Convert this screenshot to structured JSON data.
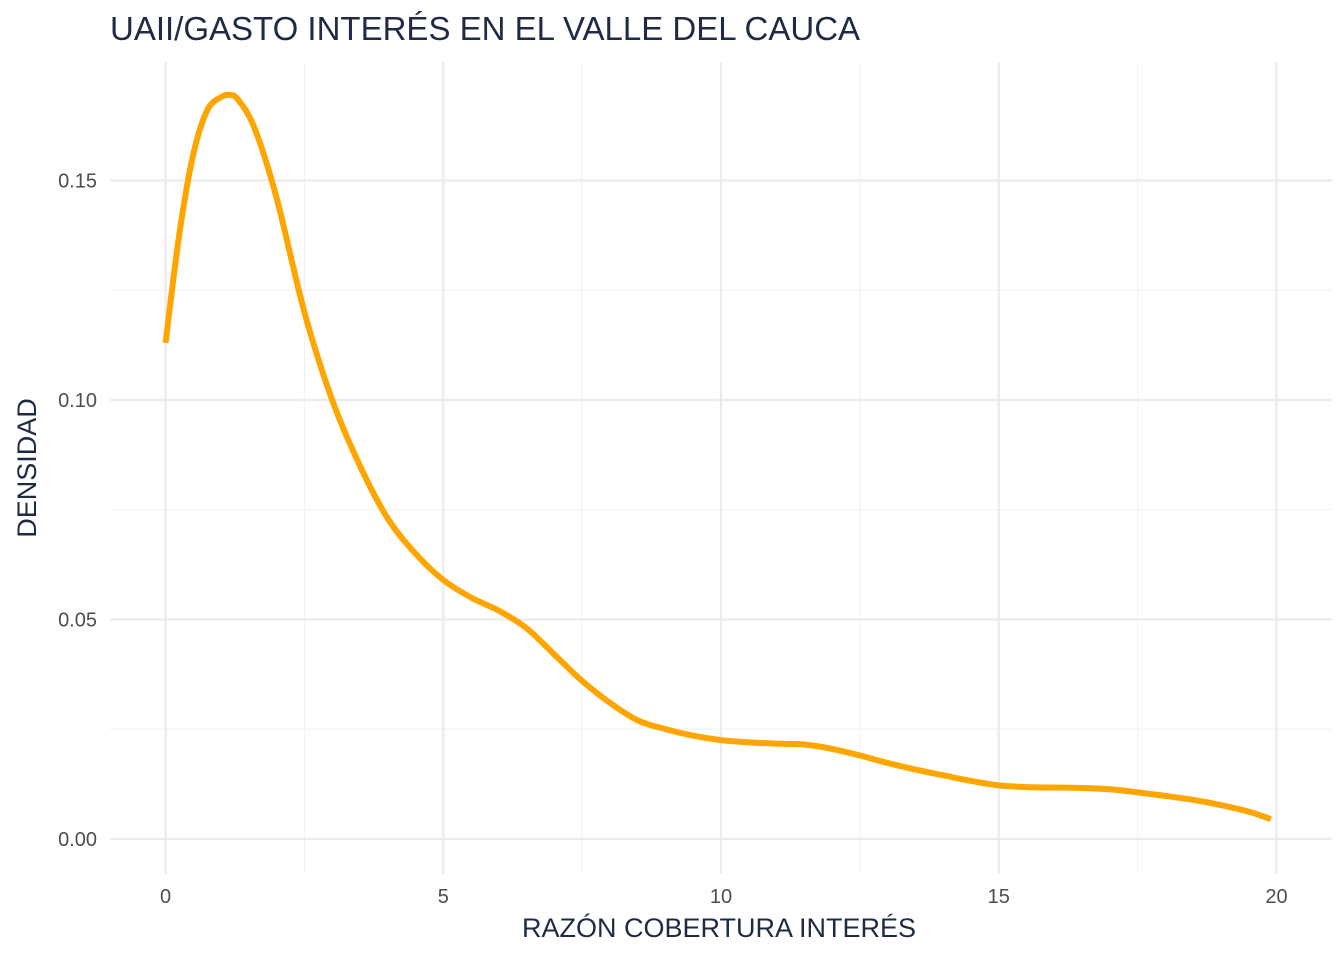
{
  "chart_data": {
    "type": "line",
    "title": "UAII/GASTO INTERÉS EN EL VALLE DEL CAUCA",
    "xlabel": "RAZÓN COBERTURA INTERÉS",
    "ylabel": "DENSIDAD",
    "xlim": [
      -1,
      21
    ],
    "ylim": [
      -0.008,
      0.177
    ],
    "x_ticks": [
      0,
      5,
      10,
      15,
      20
    ],
    "x_tick_labels": [
      "0",
      "5",
      "10",
      "15",
      "20"
    ],
    "y_ticks": [
      0.0,
      0.05,
      0.1,
      0.15
    ],
    "y_tick_labels": [
      "0.00",
      "0.05",
      "0.10",
      "0.15"
    ],
    "x_minor_ticks": [
      2.5,
      7.5,
      12.5,
      17.5
    ],
    "y_minor_ticks": [
      0.025,
      0.075,
      0.125
    ],
    "grid": true,
    "line_color": "#FFA500",
    "series": [
      {
        "x": [
          0,
          0.25,
          0.5,
          0.75,
          1.0,
          1.15,
          1.3,
          1.6,
          2.0,
          2.5,
          3.0,
          3.5,
          4.0,
          4.5,
          5.0,
          5.5,
          6.0,
          6.5,
          7.0,
          7.5,
          8.0,
          8.5,
          9.0,
          9.5,
          10.0,
          10.5,
          11.0,
          11.5,
          12.0,
          12.5,
          13.0,
          13.5,
          14.0,
          14.5,
          15.0,
          15.5,
          16.0,
          16.5,
          17.0,
          17.5,
          18.0,
          18.5,
          19.0,
          19.5,
          19.9
        ],
        "y": [
          0.113,
          0.138,
          0.156,
          0.166,
          0.169,
          0.1695,
          0.1685,
          0.162,
          0.146,
          0.12,
          0.1,
          0.085,
          0.073,
          0.065,
          0.059,
          0.055,
          0.052,
          0.048,
          0.042,
          0.036,
          0.031,
          0.027,
          0.025,
          0.0235,
          0.0225,
          0.022,
          0.0217,
          0.0215,
          0.0205,
          0.019,
          0.0173,
          0.0158,
          0.0145,
          0.0132,
          0.0122,
          0.0118,
          0.0117,
          0.0116,
          0.0113,
          0.0106,
          0.0098,
          0.0089,
          0.0077,
          0.0062,
          0.0045
        ]
      }
    ]
  }
}
